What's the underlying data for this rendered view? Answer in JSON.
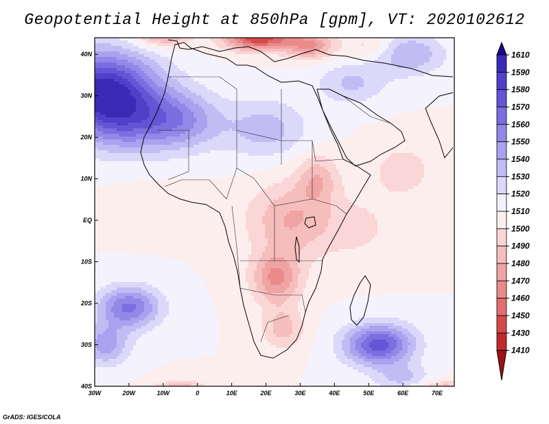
{
  "title": "Geopotential Height at 850hPa [gpm], VT: 2020102612",
  "credit": "GrADS: IGES/COLA",
  "axes": {
    "lon_labels": [
      "30W",
      "20W",
      "10W",
      "0",
      "10E",
      "20E",
      "30E",
      "40E",
      "50E",
      "60E",
      "70E"
    ],
    "lon_values": [
      -30,
      -20,
      -10,
      0,
      10,
      20,
      30,
      40,
      50,
      60,
      70
    ],
    "lat_labels": [
      "40N",
      "30N",
      "20N",
      "10N",
      "EQ",
      "10S",
      "20S",
      "30S",
      "40S"
    ],
    "lat_values": [
      40,
      30,
      20,
      10,
      0,
      -10,
      -20,
      -30,
      -40
    ],
    "lon_range": [
      -30,
      75
    ],
    "lat_range": [
      -40,
      44
    ]
  },
  "colorbar": {
    "labels": [
      "1610",
      "1590",
      "1580",
      "1570",
      "1560",
      "1550",
      "1540",
      "1530",
      "1520",
      "1510",
      "1500",
      "1490",
      "1480",
      "1470",
      "1460",
      "1450",
      "1430",
      "1410"
    ],
    "colors": [
      "#1a0a8c",
      "#3a2ab5",
      "#5040c8",
      "#6455d6",
      "#7a6ee0",
      "#9288e8",
      "#aaa2ee",
      "#c2bcf4",
      "#dcd8fa",
      "#f4f2fc",
      "#fdeeee",
      "#fbd6d6",
      "#f6bdbd",
      "#f0a3a3",
      "#ea8a8a",
      "#e26e6e",
      "#d44a4a",
      "#c12a2a",
      "#a01212"
    ]
  },
  "field": {
    "base": 1510,
    "features": [
      {
        "lon": -28,
        "lat": 32,
        "amp": 78,
        "slon": 16,
        "slat": 9
      },
      {
        "lon": -22,
        "lat": 24,
        "amp": 40,
        "slon": 14,
        "slat": 8
      },
      {
        "lon": -5,
        "lat": 24,
        "amp": 38,
        "slon": 12,
        "slat": 7
      },
      {
        "lon": 20,
        "lat": 22,
        "amp": 25,
        "slon": 12,
        "slat": 7
      },
      {
        "lon": 45,
        "lat": 33,
        "amp": 22,
        "slon": 10,
        "slat": 5
      },
      {
        "lon": 62,
        "lat": 40,
        "amp": 30,
        "slon": 10,
        "slat": 5
      },
      {
        "lon": 18,
        "lat": 44,
        "amp": -70,
        "slon": 10,
        "slat": 3
      },
      {
        "lon": 33,
        "lat": 42,
        "amp": -40,
        "slon": 7,
        "slat": 3
      },
      {
        "lon": -10,
        "lat": 45,
        "amp": -40,
        "slon": 8,
        "slat": 3
      },
      {
        "lon": 50,
        "lat": 42,
        "amp": -15,
        "slon": 7,
        "slat": 3
      },
      {
        "lon": 27,
        "lat": 0,
        "amp": -30,
        "slon": 12,
        "slat": 9
      },
      {
        "lon": 23,
        "lat": -14,
        "amp": -42,
        "slon": 7,
        "slat": 6
      },
      {
        "lon": 35,
        "lat": 10,
        "amp": -26,
        "slon": 6,
        "slat": 6
      },
      {
        "lon": 60,
        "lat": 12,
        "amp": -15,
        "slon": 10,
        "slat": 7
      },
      {
        "lon": 47,
        "lat": -2,
        "amp": -12,
        "slon": 12,
        "slat": 8
      },
      {
        "lon": 25,
        "lat": -26,
        "amp": -25,
        "slon": 6,
        "slat": 5
      },
      {
        "lon": -10,
        "lat": 3,
        "amp": -10,
        "slon": 15,
        "slat": 5
      },
      {
        "lon": -20,
        "lat": -21,
        "amp": 52,
        "slon": 9,
        "slat": 5
      },
      {
        "lon": -27,
        "lat": -30,
        "amp": 35,
        "slon": 7,
        "slat": 5
      },
      {
        "lon": 53,
        "lat": -30,
        "amp": 65,
        "slon": 10,
        "slat": 5
      },
      {
        "lon": 60,
        "lat": -38,
        "amp": 22,
        "slon": 8,
        "slat": 3
      },
      {
        "lon": -5,
        "lat": -43,
        "amp": -80,
        "slon": 8,
        "slat": 3
      },
      {
        "lon": 72,
        "lat": -43,
        "amp": -75,
        "slon": 8,
        "slat": 3
      },
      {
        "lon": 20,
        "lat": -44,
        "amp": -30,
        "slon": 6,
        "slat": 2
      }
    ]
  }
}
